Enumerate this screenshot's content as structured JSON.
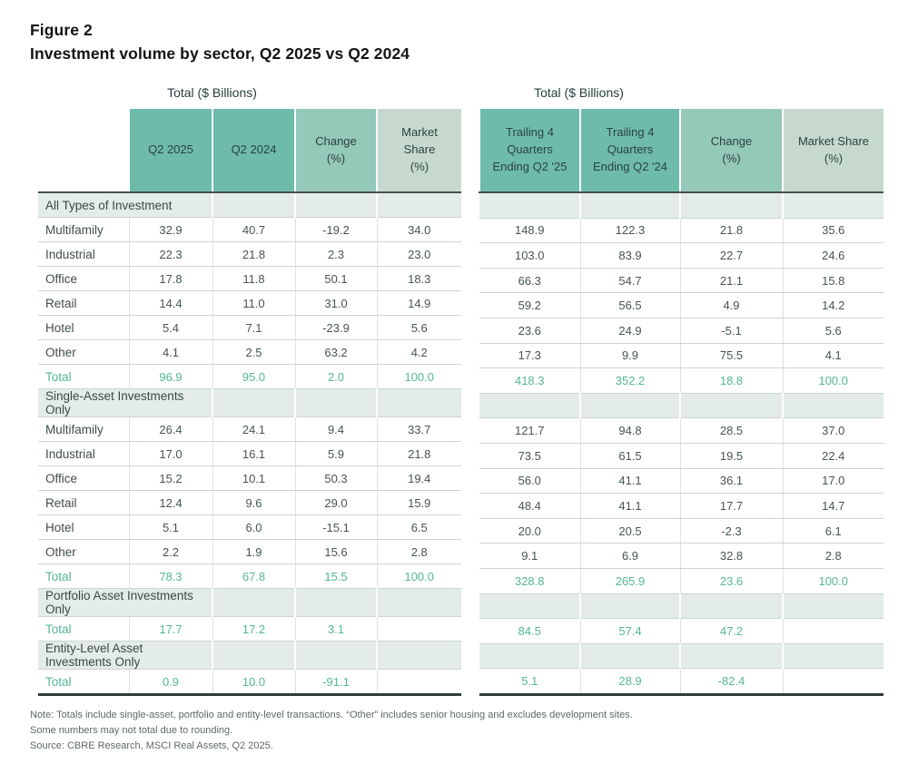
{
  "figure": {
    "label": "Figure 2",
    "title": "Investment volume by sector, Q2 2025 vs Q2 2024"
  },
  "left_table": {
    "caption": "Total ($ Billions)",
    "columns": [
      "Q2 2025",
      "Q2 2024",
      "Change\n(%)",
      "Market\nShare\n(%)"
    ]
  },
  "right_table": {
    "caption": "Total ($ Billions)",
    "columns": [
      "Trailing 4\nQuarters\nEnding Q2 '25",
      "Trailing 4\nQuarters\nEnding Q2 '24",
      "Change\n(%)",
      "Market Share\n(%)"
    ]
  },
  "sections": [
    {
      "title": "All Types of Investment",
      "rows": [
        {
          "label": "Multifamily",
          "total": false,
          "left": [
            "32.9",
            "40.7",
            "-19.2",
            "34.0"
          ],
          "right": [
            "148.9",
            "122.3",
            "21.8",
            "35.6"
          ]
        },
        {
          "label": "Industrial",
          "total": false,
          "left": [
            "22.3",
            "21.8",
            "2.3",
            "23.0"
          ],
          "right": [
            "103.0",
            "83.9",
            "22.7",
            "24.6"
          ]
        },
        {
          "label": "Office",
          "total": false,
          "left": [
            "17.8",
            "11.8",
            "50.1",
            "18.3"
          ],
          "right": [
            "66.3",
            "54.7",
            "21.1",
            "15.8"
          ]
        },
        {
          "label": "Retail",
          "total": false,
          "left": [
            "14.4",
            "11.0",
            "31.0",
            "14.9"
          ],
          "right": [
            "59.2",
            "56.5",
            "4.9",
            "14.2"
          ]
        },
        {
          "label": "Hotel",
          "total": false,
          "left": [
            "5.4",
            "7.1",
            "-23.9",
            "5.6"
          ],
          "right": [
            "23.6",
            "24.9",
            "-5.1",
            "5.6"
          ]
        },
        {
          "label": "Other",
          "total": false,
          "left": [
            "4.1",
            "2.5",
            "63.2",
            "4.2"
          ],
          "right": [
            "17.3",
            "9.9",
            "75.5",
            "4.1"
          ]
        },
        {
          "label": "Total",
          "total": true,
          "left": [
            "96.9",
            "95.0",
            "2.0",
            "100.0"
          ],
          "right": [
            "418.3",
            "352.2",
            "18.8",
            "100.0"
          ]
        }
      ]
    },
    {
      "title": "Single-Asset Investments Only",
      "rows": [
        {
          "label": "Multifamily",
          "total": false,
          "left": [
            "26.4",
            "24.1",
            "9.4",
            "33.7"
          ],
          "right": [
            "121.7",
            "94.8",
            "28.5",
            "37.0"
          ]
        },
        {
          "label": "Industrial",
          "total": false,
          "left": [
            "17.0",
            "16.1",
            "5.9",
            "21.8"
          ],
          "right": [
            "73.5",
            "61.5",
            "19.5",
            "22.4"
          ]
        },
        {
          "label": "Office",
          "total": false,
          "left": [
            "15.2",
            "10.1",
            "50.3",
            "19.4"
          ],
          "right": [
            "56.0",
            "41.1",
            "36.1",
            "17.0"
          ]
        },
        {
          "label": "Retail",
          "total": false,
          "left": [
            "12.4",
            "9.6",
            "29.0",
            "15.9"
          ],
          "right": [
            "48.4",
            "41.1",
            "17.7",
            "14.7"
          ]
        },
        {
          "label": "Hotel",
          "total": false,
          "left": [
            "5.1",
            "6.0",
            "-15.1",
            "6.5"
          ],
          "right": [
            "20.0",
            "20.5",
            "-2.3",
            "6.1"
          ]
        },
        {
          "label": "Other",
          "total": false,
          "left": [
            "2.2",
            "1.9",
            "15.6",
            "2.8"
          ],
          "right": [
            "9.1",
            "6.9",
            "32.8",
            "2.8"
          ]
        },
        {
          "label": "Total",
          "total": true,
          "left": [
            "78.3",
            "67.8",
            "15.5",
            "100.0"
          ],
          "right": [
            "328.8",
            "265.9",
            "23.6",
            "100.0"
          ]
        }
      ]
    },
    {
      "title": "Portfolio Asset Investments Only",
      "rows": [
        {
          "label": "Total",
          "total": true,
          "left": [
            "17.7",
            "17.2",
            "3.1",
            ""
          ],
          "right": [
            "84.5",
            "57.4",
            "47.2",
            ""
          ]
        }
      ]
    },
    {
      "title": "Entity-Level Asset Investments Only",
      "rows": [
        {
          "label": "Total",
          "total": true,
          "left": [
            "0.9",
            "10.0",
            "-91.1",
            ""
          ],
          "right": [
            "5.1",
            "28.9",
            "-82.4",
            ""
          ]
        }
      ]
    }
  ],
  "notes": [
    "Note: Totals include single-asset, portfolio and entity-level transactions. “Other” includes senior housing and excludes development sites.",
    "Some numbers may not total due to rounding.",
    "Source: CBRE Research, MSCI Real Assets, Q2 2025."
  ],
  "colors": {
    "header_dark_teal": "#6ebbaa",
    "header_mid_teal": "#94c8b9",
    "header_light_green": "#c7d9ce",
    "section_row_bg": "#e3ece7",
    "total_text_teal": "#54b698"
  }
}
